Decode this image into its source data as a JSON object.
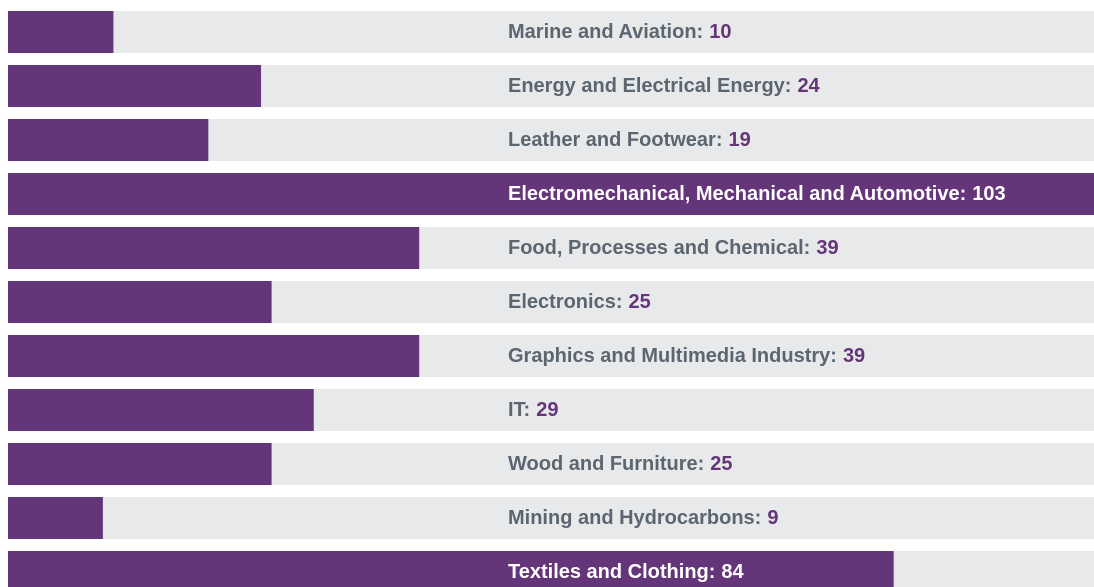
{
  "chart_data": {
    "type": "bar",
    "orientation": "horizontal",
    "categories": [
      "Marine and Aviation:",
      "Energy and Electrical Energy:",
      "Leather and Footwear:",
      "Electromechanical, Mechanical and Automotive:",
      "Food, Processes and Chemical:",
      "Electronics:",
      "Graphics and Multimedia Industry:",
      "IT:",
      "Wood and Furniture:",
      "Mining and Hydrocarbons:",
      "Textiles and Clothing:"
    ],
    "values": [
      10,
      24,
      19,
      103,
      39,
      25,
      39,
      29,
      25,
      9,
      84
    ],
    "color": "#65357a",
    "track_color": "#e8e9eb",
    "label_color": "#5b6670",
    "xlim": [
      0,
      103
    ]
  }
}
